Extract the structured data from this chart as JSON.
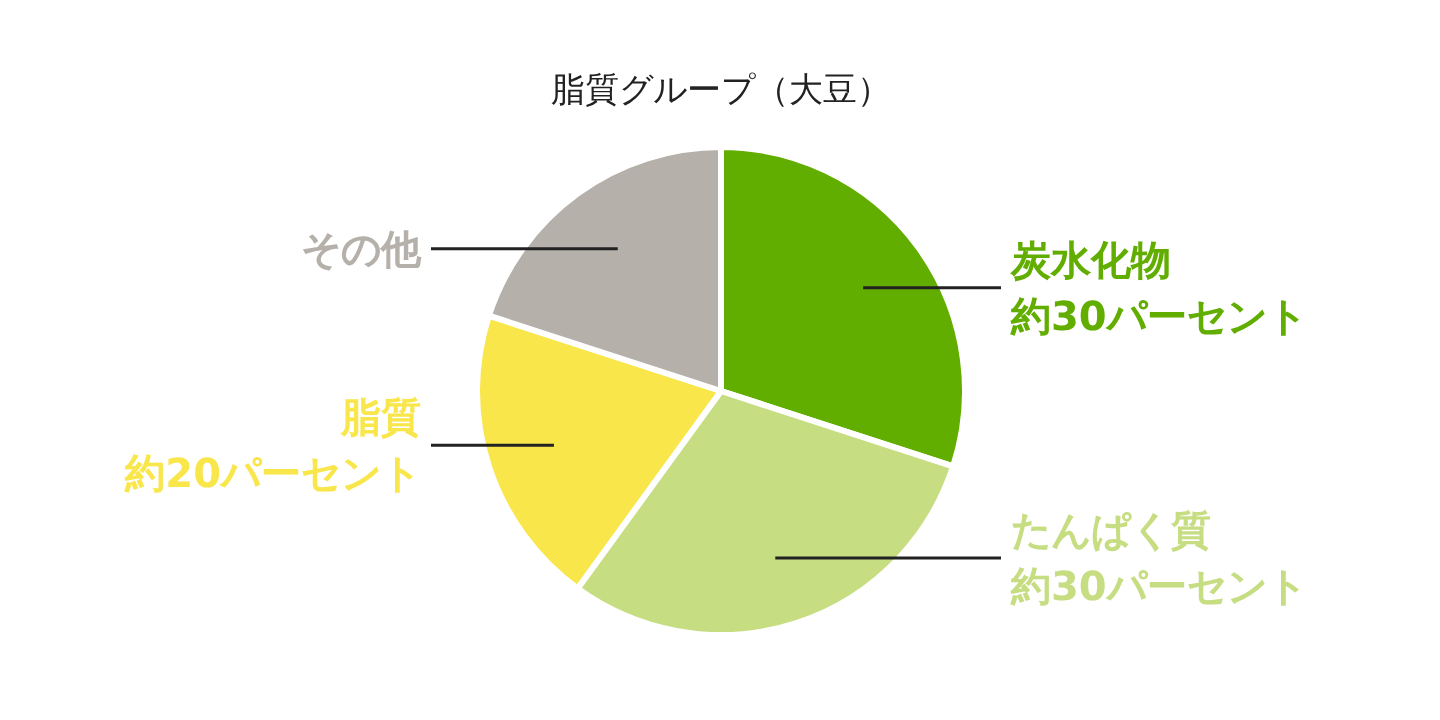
{
  "chart_data": {
    "type": "pie",
    "title": "脂質グループ（大豆）",
    "categories": [
      "炭水化物",
      "たんぱく質",
      "脂質",
      "その他"
    ],
    "values": [
      30,
      30,
      20,
      20
    ],
    "value_labels": [
      "約30パーセント",
      "約30パーセント",
      "約20パーセント",
      null
    ],
    "colors": [
      "#62ae00",
      "#c6dd82",
      "#f9e64a",
      "#b5b0aa"
    ]
  }
}
